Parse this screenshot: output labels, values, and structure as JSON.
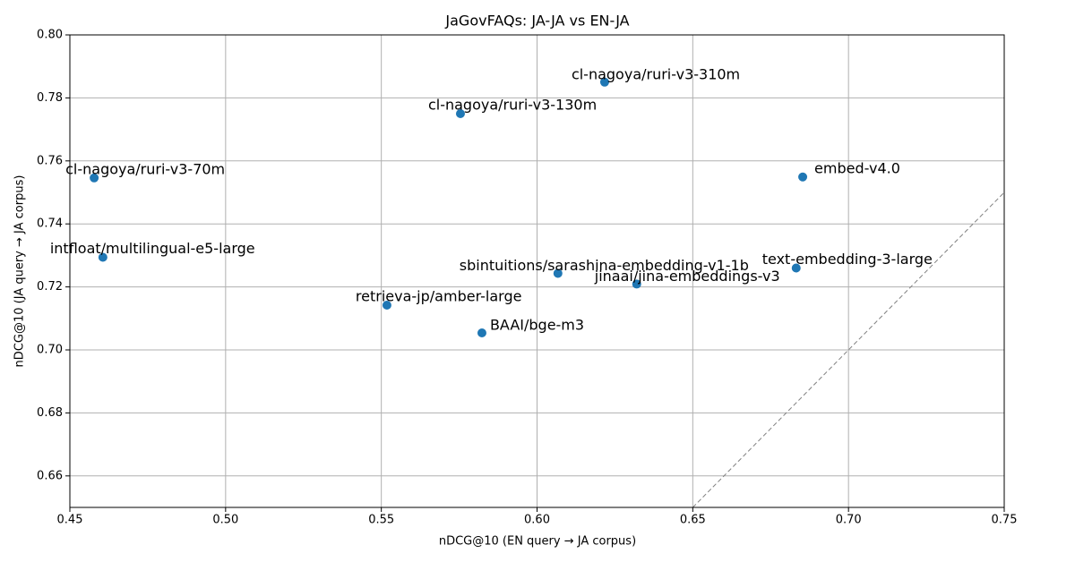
{
  "chart_data": {
    "type": "scatter",
    "title": "JaGovFAQs: JA-JA vs EN-JA",
    "x_label": "nDCG@10 (EN query → JA corpus)",
    "y_label": "nDCG@10 (JA query → JA corpus)",
    "series": [
      {
        "color": "#1f77b4",
        "labels": [
          "cl-nagoya/ruri-v3-310m",
          "cl-nagoya/ruri-v3-130m",
          "cl-nagoya/ruri-v3-70m",
          "embed-v4.0",
          "intfloat/multilingual-e5-large",
          "sbintuitions/sarashina-embedding-v1-1b",
          "jinaai/jina-embeddings-v3",
          "text-embedding-3-large",
          "retrieva-jp/amber-large",
          "BAAI/bge-m3"
        ],
        "x": [
          0.6217,
          0.5754,
          0.4578,
          0.6853,
          0.4606,
          0.6067,
          0.632,
          0.6832,
          0.5518,
          0.5823
        ],
        "values": [
          0.785,
          0.775,
          0.7546,
          0.7549,
          0.7294,
          0.7243,
          0.7209,
          0.726,
          0.7142,
          0.7054
        ]
      }
    ],
    "xlim": [
      0.45,
      0.75
    ],
    "xticks": [
      {
        "value": 0.45,
        "label": "0.45"
      },
      {
        "value": 0.5,
        "label": "0.50"
      },
      {
        "value": 0.55,
        "label": "0.55"
      },
      {
        "value": 0.6,
        "label": "0.60"
      },
      {
        "value": 0.65,
        "label": "0.65"
      },
      {
        "value": 0.7,
        "label": "0.70"
      },
      {
        "value": 0.75,
        "label": "0.75"
      }
    ],
    "ylim": [
      0.65,
      0.8
    ],
    "yticks": [
      {
        "value": 0.66,
        "label": "0.66"
      },
      {
        "value": 0.68,
        "label": "0.68"
      },
      {
        "value": 0.7,
        "label": "0.70"
      },
      {
        "value": 0.72,
        "label": "0.72"
      },
      {
        "value": 0.74,
        "label": "0.74"
      },
      {
        "value": 0.76,
        "label": "0.76"
      },
      {
        "value": 0.78,
        "label": "0.78"
      },
      {
        "value": 0.8,
        "label": "0.80"
      }
    ],
    "grid": true,
    "diagonal": true
  }
}
